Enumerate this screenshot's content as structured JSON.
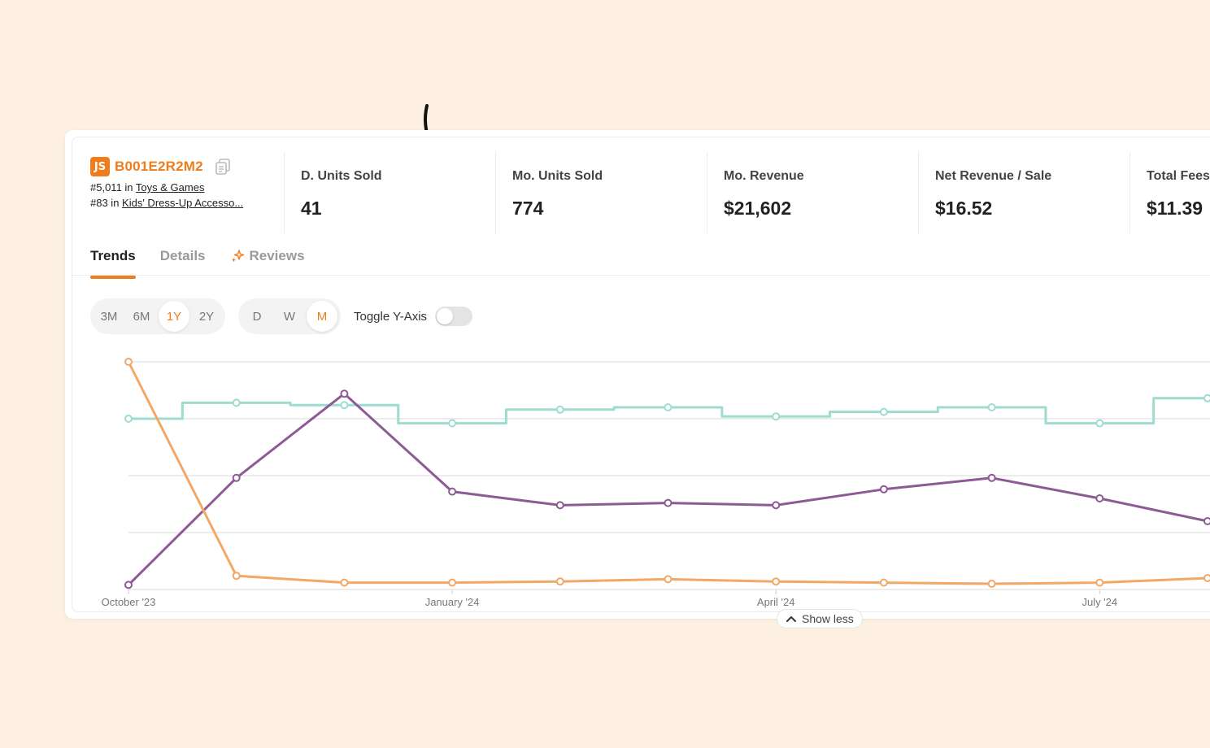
{
  "product": {
    "logo_text": "JS",
    "asin": "B001E2R2M2",
    "rank1_prefix": "#5,011 in",
    "rank1_category": "Toys & Games",
    "rank2_prefix": "#83 in",
    "rank2_category": "Kids' Dress-Up Accesso..."
  },
  "metrics": [
    {
      "label": "D. Units Sold",
      "value": "41"
    },
    {
      "label": "Mo. Units Sold",
      "value": "774"
    },
    {
      "label": "Mo. Revenue",
      "value": "$21,602"
    },
    {
      "label": "Net Revenue / Sale",
      "value": "$16.52"
    },
    {
      "label": "Total Fees",
      "value": "$11.39"
    }
  ],
  "tabs": [
    {
      "label": "Trends",
      "active": true
    },
    {
      "label": "Details",
      "active": false
    },
    {
      "label": "Reviews",
      "active": false,
      "icon": "sparkle-icon"
    }
  ],
  "range_options": [
    "3M",
    "6M",
    "1Y",
    "2Y"
  ],
  "range_selected": "1Y",
  "interval_options": [
    "D",
    "W",
    "M"
  ],
  "interval_selected": "M",
  "toggle_label": "Toggle Y-Axis",
  "toggle_on": false,
  "show_less_label": "Show less",
  "colors": {
    "accent": "#f07c1b",
    "teal": "#9fdcd0",
    "purple": "#8e5a96",
    "orange": "#f2a867"
  },
  "chart_data": {
    "type": "line",
    "x": [
      "2023-10",
      "2023-11",
      "2023-12",
      "2024-01",
      "2024-02",
      "2024-03",
      "2024-04",
      "2024-05",
      "2024-06",
      "2024-07",
      "2024-08"
    ],
    "x_tick_labels": [
      "October '23",
      "January '24",
      "April '24",
      "July '24"
    ],
    "x_tick_positions": [
      "2023-10",
      "2024-01",
      "2024-04",
      "2024-07"
    ],
    "grid": true,
    "y_axis_labels_shown": false,
    "ylim": [
      0,
      100
    ],
    "series": [
      {
        "color": "#9fdcd0",
        "step": true,
        "values": [
          75,
          82,
          81,
          73,
          79,
          80,
          76,
          78,
          80,
          73,
          84
        ]
      },
      {
        "color": "#8e5a96",
        "step": false,
        "values": [
          2,
          49,
          86,
          43,
          37,
          38,
          37,
          44,
          49,
          40,
          30
        ]
      },
      {
        "color": "#f2a867",
        "step": false,
        "values": [
          100,
          6,
          3,
          3,
          3.5,
          4.5,
          3.5,
          3,
          2.5,
          3,
          5
        ]
      }
    ]
  }
}
